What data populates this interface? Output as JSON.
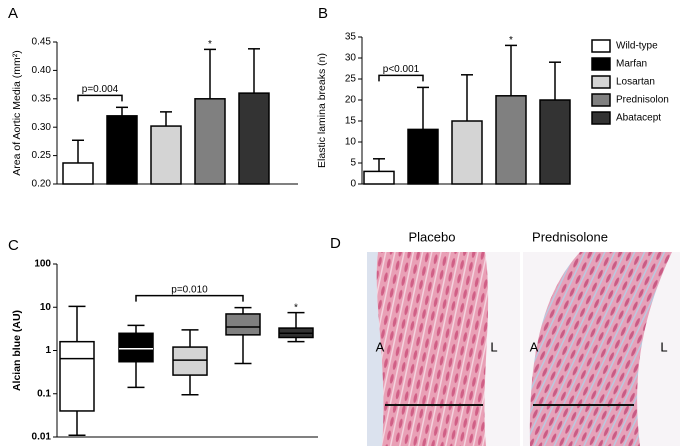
{
  "legend": [
    {
      "name": "Wild-type",
      "color": "#ffffff"
    },
    {
      "name": "Marfan",
      "color": "#000000"
    },
    {
      "name": "Losartan",
      "color": "#d4d4d4"
    },
    {
      "name": "Prednisolon",
      "color": "#808080"
    },
    {
      "name": "Abatacept",
      "color": "#333333"
    }
  ],
  "chart_data": [
    {
      "type": "bar",
      "panel_label": "A",
      "y_label": "Area of Aortic Media (mm²)",
      "values": [
        0.237,
        0.32,
        0.302,
        0.35,
        0.36
      ],
      "errors": [
        0.04,
        0.015,
        0.025,
        0.087,
        0.078
      ],
      "ylim": [
        0.2,
        0.45
      ],
      "yticks": [
        {
          "value": 0.2,
          "label": "0.20"
        },
        0.25,
        {
          "value": 0.3,
          "label": "0.30"
        },
        0.35,
        {
          "value": 0.4,
          "label": "0.40"
        },
        0.45
      ],
      "brackets": [
        {
          "from": 0,
          "to": 1,
          "label": "p=0.004"
        }
      ],
      "stars": [
        {
          "index": 3,
          "label": "*"
        }
      ]
    },
    {
      "type": "bar",
      "panel_label": "B",
      "y_label": "Elastic lamina breaks  (n)",
      "values": [
        3,
        13,
        15,
        21,
        20
      ],
      "errors": [
        3,
        10,
        11,
        12,
        9
      ],
      "ylim": [
        0,
        35
      ],
      "yticks": [
        0,
        5,
        10,
        15,
        20,
        25,
        30,
        35
      ],
      "brackets": [
        {
          "from": 0,
          "to": 1,
          "label": "p<0.001"
        }
      ],
      "stars": [
        {
          "index": 3,
          "label": "*"
        }
      ],
      "legend_position": "right"
    },
    {
      "type": "box",
      "panel_label": "C",
      "y_label": "Alcian blue (AU)",
      "log_scale": true,
      "min": [
        0.011,
        0.14,
        0.095,
        0.5,
        1.6
      ],
      "q1": [
        0.04,
        0.55,
        0.27,
        2.3,
        2.0
      ],
      "median": [
        0.65,
        1.1,
        0.6,
        3.5,
        2.5
      ],
      "q3": [
        1.6,
        2.5,
        1.2,
        7,
        3.3
      ],
      "max": [
        10.5,
        3.8,
        3.0,
        9.8,
        7.5
      ],
      "ylim": [
        0.01,
        100
      ],
      "yticks": [
        0.01,
        0.1,
        1,
        10,
        100
      ],
      "brackets": [
        {
          "from": 1,
          "to": 3,
          "label": "p=0.010"
        }
      ],
      "stars": [
        {
          "index": 4,
          "label": "*"
        }
      ]
    }
  ],
  "image_panel": {
    "panel_label": "D",
    "titles": [
      "Placebo",
      "Prednisolone"
    ],
    "side_labels": [
      [
        "A",
        "L"
      ],
      [
        "A",
        "L"
      ]
    ]
  }
}
